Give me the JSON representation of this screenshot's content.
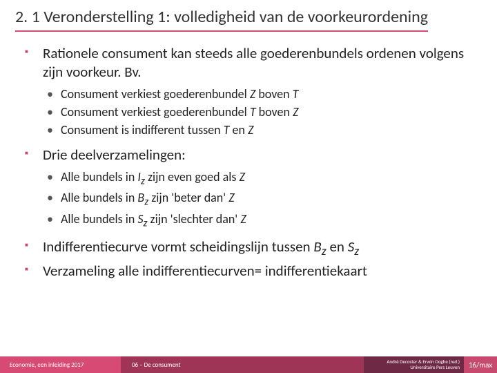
{
  "colors": {
    "accent": "#d64a74",
    "bullet": "#c74a6e",
    "footer_left": "#d64a74",
    "footer_mid": "#9e3557",
    "footer_right": "#6e2944",
    "footer_page": "#c74a6e",
    "title_underline": "#d64a74"
  },
  "title": "2. 1 Veronderstelling 1: volledigheid van de voorkeurordening",
  "items": [
    {
      "text": "Rationele consument kan steeds alle goederenbundels ordenen volgens zijn voorkeur. Bv.",
      "sub": [
        {
          "pre": "Consument verkiest goederenbundel ",
          "i1": "Z",
          "mid": " boven ",
          "i2": "T",
          "post": ""
        },
        {
          "pre": "Consument verkiest goederenbundel ",
          "i1": "T",
          "mid": " boven ",
          "i2": "Z",
          "post": ""
        },
        {
          "pre": "Consument is indifferent tussen ",
          "i1": "T",
          "mid": " en ",
          "i2": "Z",
          "post": ""
        }
      ]
    },
    {
      "text": "Drie deelverzamelingen:",
      "sub": [
        {
          "pre": "Alle bundels in ",
          "i1": "I",
          "sub1": "z",
          "mid": " zijn even goed als ",
          "i2": "Z",
          "post": ""
        },
        {
          "pre": "Alle bundels in ",
          "i1": "B",
          "sub1": "z",
          "mid": " zijn 'beter dan' ",
          "i2": "Z",
          "post": ""
        },
        {
          "pre": "Alle bundels in ",
          "i1": "S",
          "sub1": "z",
          "mid": " zijn 'slechter dan' ",
          "i2": "Z",
          "post": ""
        }
      ]
    },
    {
      "rich": {
        "pre": "Indifferentiecurve vormt scheidingslijn tussen ",
        "i1": "B",
        "sub1": "z",
        "mid": " en ",
        "i2": "S",
        "sub2": "z",
        "post": ""
      }
    },
    {
      "text": "Verzameling alle indifferentiecurven= indifferentiekaart"
    }
  ],
  "footer": {
    "left": "Economie, een inleiding 2017",
    "mid": "06 – De consument",
    "right1": "André Decoster & Erwin Ooghe (red.)",
    "right2": "Universitaire Pers Leuven",
    "page": "16/max"
  }
}
